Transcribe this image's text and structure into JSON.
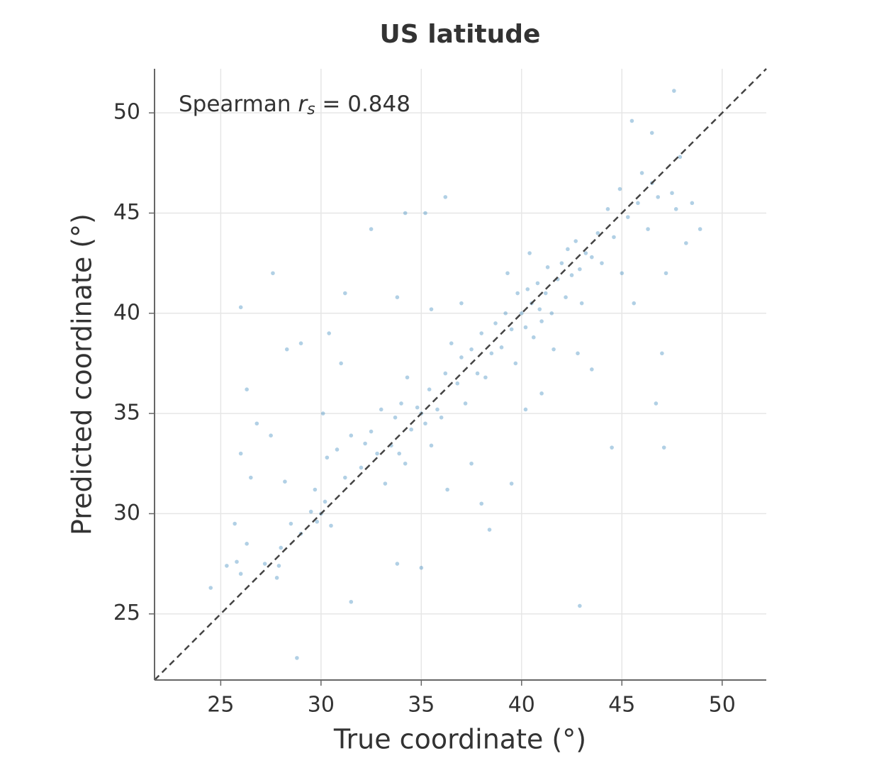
{
  "chart_data": {
    "type": "scatter",
    "title": "US latitude",
    "x_label": "True coordinate (°)",
    "y_label": "Predicted coordinate (°)",
    "annotation": {
      "prefix": "Spearman",
      "symbol": "r",
      "subscript": "s",
      "suffix": "= 0.848"
    },
    "xlim": [
      21.7,
      52.2
    ],
    "ylim": [
      21.7,
      52.2
    ],
    "xticks": [
      25,
      30,
      35,
      40,
      45,
      50
    ],
    "yticks": [
      25,
      30,
      35,
      40,
      45,
      50
    ],
    "grid": true,
    "reference_line": "identity",
    "color": "#1f77b4",
    "alpha": 0.35,
    "x": [
      24.5,
      25.3,
      25.8,
      26.0,
      26.3,
      25.7,
      26.0,
      26.5,
      26.3,
      26.0,
      27.2,
      27.8,
      27.9,
      28.0,
      28.5,
      28.2,
      27.5,
      28.3,
      27.6,
      28.8,
      29.0,
      29.5,
      29.8,
      30.0,
      30.2,
      30.5,
      29.7,
      30.3,
      30.1,
      30.4,
      30.8,
      31.2,
      31.5,
      31.0,
      31.5,
      32.0,
      32.2,
      32.5,
      32.8,
      33.0,
      33.2,
      33.5,
      33.7,
      33.9,
      34.0,
      34.2,
      34.3,
      33.8,
      34.5,
      34.8,
      35.0,
      35.2,
      35.4,
      35.0,
      35.5,
      35.8,
      36.0,
      36.2,
      36.5,
      36.3,
      36.8,
      37.0,
      37.2,
      37.5,
      37.8,
      37.0,
      38.0,
      38.2,
      38.5,
      38.7,
      38.4,
      39.0,
      39.2,
      39.5,
      39.7,
      39.3,
      39.8,
      40.0,
      40.2,
      40.3,
      40.5,
      40.6,
      40.8,
      40.4,
      40.9,
      41.0,
      41.2,
      41.3,
      41.5,
      41.6,
      41.8,
      42.0,
      42.2,
      42.3,
      42.5,
      42.7,
      42.9,
      43.0,
      43.2,
      43.5,
      42.8,
      41.0,
      40.2,
      42.9,
      43.8,
      44.0,
      44.3,
      44.6,
      44.9,
      45.0,
      45.3,
      45.6,
      45.8,
      46.0,
      46.3,
      46.5,
      46.8,
      47.0,
      47.2,
      47.5,
      47.7,
      47.6,
      47.9,
      48.2,
      48.5,
      48.9,
      47.1,
      46.7,
      45.5,
      46.5,
      43.5,
      44.5,
      31.2,
      34.2,
      35.2,
      36.2,
      32.5,
      33.8,
      29.0,
      26.8,
      35.5,
      37.5,
      38.0,
      39.5
    ],
    "y": [
      26.3,
      27.4,
      27.6,
      27.0,
      28.5,
      29.5,
      33.0,
      31.8,
      36.2,
      40.3,
      27.5,
      26.8,
      27.4,
      28.3,
      29.5,
      31.6,
      33.9,
      38.2,
      42.0,
      22.8,
      29.0,
      30.1,
      29.6,
      30.0,
      30.6,
      29.4,
      31.2,
      32.8,
      35.0,
      39.0,
      33.2,
      31.8,
      33.9,
      37.5,
      25.6,
      32.3,
      33.5,
      34.1,
      33.0,
      35.2,
      31.5,
      33.4,
      34.8,
      33.0,
      35.5,
      32.5,
      36.8,
      27.5,
      34.2,
      35.3,
      35.0,
      34.5,
      36.2,
      27.3,
      33.4,
      35.2,
      34.8,
      37.0,
      38.5,
      31.2,
      36.5,
      37.8,
      35.5,
      38.2,
      37.0,
      40.5,
      39.0,
      36.8,
      38.0,
      39.5,
      29.2,
      38.3,
      40.0,
      39.2,
      37.5,
      42.0,
      41.0,
      40.0,
      39.3,
      41.2,
      40.5,
      38.8,
      41.5,
      43.0,
      40.2,
      39.6,
      41.0,
      42.3,
      40.0,
      38.2,
      41.7,
      42.5,
      40.8,
      43.2,
      41.9,
      43.6,
      42.2,
      40.5,
      43.0,
      42.8,
      38.0,
      36.0,
      35.2,
      25.4,
      44.0,
      42.5,
      45.2,
      43.8,
      46.2,
      42.0,
      44.8,
      40.5,
      45.5,
      47.0,
      44.2,
      46.5,
      45.8,
      38.0,
      42.0,
      46.0,
      45.2,
      51.1,
      47.8,
      43.5,
      45.5,
      44.2,
      33.3,
      35.5,
      49.6,
      49.0,
      37.2,
      33.3,
      41.0,
      45.0,
      45.0,
      45.8,
      44.2,
      40.8,
      38.5,
      34.5,
      40.2,
      32.5,
      30.5,
      31.5
    ]
  }
}
